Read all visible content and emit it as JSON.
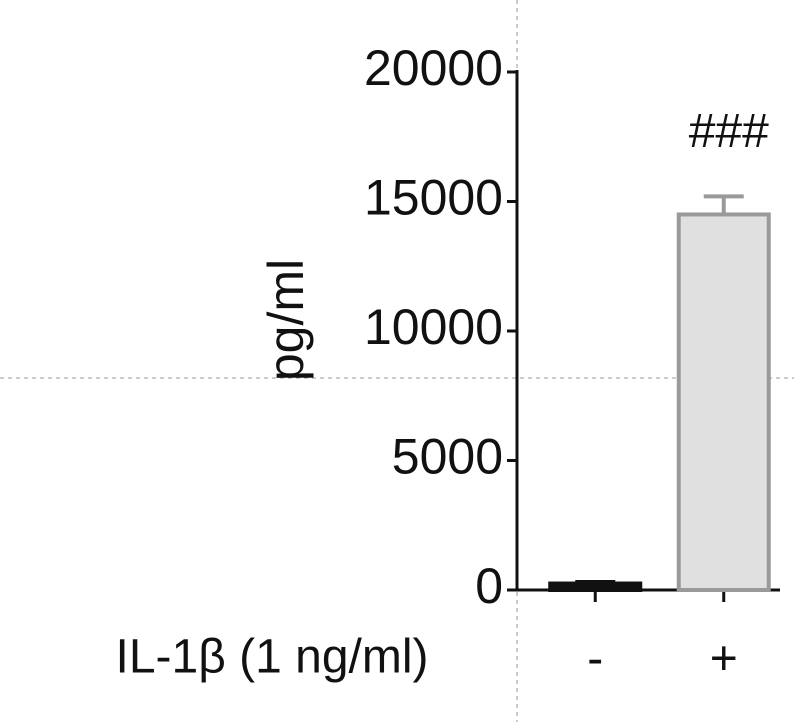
{
  "chart_data": {
    "type": "bar",
    "xlabel": "IL-1β (1 ng/ml)",
    "ylabel": "pg/ml",
    "categories": [
      "-",
      "+"
    ],
    "values": [
      250,
      14500
    ],
    "errors": [
      60,
      700
    ],
    "colors": [
      "#111111",
      "#e0e0e0"
    ],
    "edgecolors": [
      "#111111",
      "#9a9a9a"
    ],
    "ylim": [
      0,
      20000
    ],
    "yticks": [
      0,
      5000,
      10000,
      15000,
      20000
    ],
    "annotations": [
      {
        "text": "###",
        "category": "+"
      }
    ]
  }
}
